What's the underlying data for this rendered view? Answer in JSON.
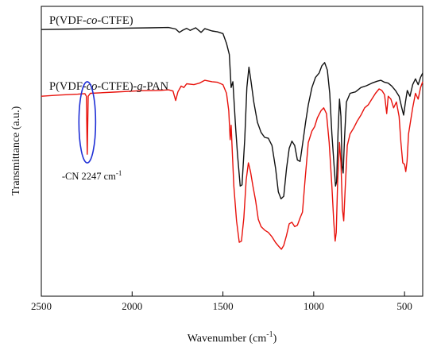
{
  "chart_data": {
    "type": "line",
    "xlabel": "Wavenumber (cm",
    "xlabel_sup": "-1",
    "xlabel_tail": ")",
    "ylabel": "Transmittance (a.u.)",
    "xlim": [
      2500,
      400
    ],
    "x_reversed": true,
    "y_ticks_shown": false,
    "ylim": [
      0,
      100
    ],
    "x_ticks": [
      2500,
      2000,
      1500,
      1000,
      500
    ],
    "x_tick_labels": [
      "2500",
      "2000",
      "1500",
      "1000",
      "500"
    ],
    "series": [
      {
        "name": "P(VDF-co-CTFE)",
        "name_parts": [
          "P(VDF-",
          "co",
          "-CTFE)"
        ],
        "color": "#111111",
        "points": [
          [
            2500,
            92
          ],
          [
            2300,
            92.2
          ],
          [
            2100,
            92.4
          ],
          [
            1900,
            92.6
          ],
          [
            1800,
            92.7
          ],
          [
            1760,
            92.2
          ],
          [
            1740,
            91.0
          ],
          [
            1720,
            91.8
          ],
          [
            1700,
            92.4
          ],
          [
            1680,
            91.7
          ],
          [
            1650,
            92.6
          ],
          [
            1620,
            91.0
          ],
          [
            1600,
            92.3
          ],
          [
            1560,
            91.5
          ],
          [
            1530,
            91.2
          ],
          [
            1500,
            90.6
          ],
          [
            1480,
            87.2
          ],
          [
            1465,
            83.4
          ],
          [
            1455,
            72.0
          ],
          [
            1445,
            74.0
          ],
          [
            1430,
            58.0
          ],
          [
            1420,
            49.0
          ],
          [
            1405,
            38.0
          ],
          [
            1395,
            38.4
          ],
          [
            1380,
            54.0
          ],
          [
            1368,
            72.0
          ],
          [
            1357,
            79.0
          ],
          [
            1345,
            74.0
          ],
          [
            1330,
            67.0
          ],
          [
            1310,
            60.0
          ],
          [
            1290,
            56.5
          ],
          [
            1270,
            54.8
          ],
          [
            1250,
            54.5
          ],
          [
            1230,
            52.0
          ],
          [
            1210,
            44.0
          ],
          [
            1195,
            36.0
          ],
          [
            1180,
            33.6
          ],
          [
            1165,
            34.5
          ],
          [
            1150,
            44.0
          ],
          [
            1135,
            51.0
          ],
          [
            1120,
            53.5
          ],
          [
            1105,
            52.0
          ],
          [
            1090,
            47.0
          ],
          [
            1075,
            46.5
          ],
          [
            1060,
            53.0
          ],
          [
            1045,
            60.0
          ],
          [
            1030,
            66.0
          ],
          [
            1010,
            72.0
          ],
          [
            990,
            75.5
          ],
          [
            970,
            77.0
          ],
          [
            955,
            79.5
          ],
          [
            940,
            80.6
          ],
          [
            925,
            78.0
          ],
          [
            912,
            70.0
          ],
          [
            900,
            56.0
          ],
          [
            888,
            45.0
          ],
          [
            880,
            38.0
          ],
          [
            874,
            39.5
          ],
          [
            866,
            57.0
          ],
          [
            858,
            68.0
          ],
          [
            850,
            62.0
          ],
          [
            844,
            45.0
          ],
          [
            838,
            42.5
          ],
          [
            830,
            55.0
          ],
          [
            820,
            67.0
          ],
          [
            800,
            70.0
          ],
          [
            770,
            70.5
          ],
          [
            740,
            72.0
          ],
          [
            710,
            72.6
          ],
          [
            680,
            73.5
          ],
          [
            650,
            74.2
          ],
          [
            630,
            74.5
          ],
          [
            610,
            73.8
          ],
          [
            590,
            73.5
          ],
          [
            570,
            72.5
          ],
          [
            550,
            71.0
          ],
          [
            530,
            69.0
          ],
          [
            515,
            65.0
          ],
          [
            505,
            62.5
          ],
          [
            495,
            67.0
          ],
          [
            485,
            71.0
          ],
          [
            470,
            69.0
          ],
          [
            455,
            73.0
          ],
          [
            440,
            75.0
          ],
          [
            425,
            73.0
          ],
          [
            412,
            75.5
          ],
          [
            400,
            77.0
          ]
        ]
      },
      {
        "name": "P(VDF-co-CTFE)-g-PAN",
        "name_parts": [
          "P(VDF-",
          "co",
          "-CTFE)-",
          "g",
          "-PAN"
        ],
        "color": "#e8120c",
        "points": [
          [
            2500,
            69.0
          ],
          [
            2400,
            69.4
          ],
          [
            2300,
            69.7
          ],
          [
            2260,
            69.9
          ],
          [
            2252,
            69.0
          ],
          [
            2247,
            49.0
          ],
          [
            2242,
            69.0
          ],
          [
            2230,
            70.0
          ],
          [
            2100,
            70.4
          ],
          [
            1950,
            70.9
          ],
          [
            1850,
            71.0
          ],
          [
            1800,
            71.2
          ],
          [
            1775,
            70.8
          ],
          [
            1760,
            67.5
          ],
          [
            1748,
            70.5
          ],
          [
            1730,
            72.5
          ],
          [
            1715,
            72.0
          ],
          [
            1700,
            73.3
          ],
          [
            1660,
            73.0
          ],
          [
            1630,
            73.5
          ],
          [
            1600,
            74.5
          ],
          [
            1560,
            74.0
          ],
          [
            1530,
            73.8
          ],
          [
            1500,
            73.0
          ],
          [
            1480,
            70.0
          ],
          [
            1468,
            64.0
          ],
          [
            1460,
            54.0
          ],
          [
            1455,
            59.0
          ],
          [
            1448,
            49.0
          ],
          [
            1440,
            38.0
          ],
          [
            1425,
            26.0
          ],
          [
            1410,
            18.6
          ],
          [
            1398,
            19.0
          ],
          [
            1385,
            27.0
          ],
          [
            1372,
            40.0
          ],
          [
            1360,
            46.0
          ],
          [
            1348,
            43.0
          ],
          [
            1335,
            38.0
          ],
          [
            1320,
            33.0
          ],
          [
            1305,
            26.5
          ],
          [
            1290,
            24.0
          ],
          [
            1270,
            22.8
          ],
          [
            1250,
            22.0
          ],
          [
            1230,
            20.5
          ],
          [
            1210,
            18.5
          ],
          [
            1190,
            17.0
          ],
          [
            1178,
            16.2
          ],
          [
            1165,
            17.5
          ],
          [
            1150,
            21.0
          ],
          [
            1135,
            25.0
          ],
          [
            1120,
            25.5
          ],
          [
            1105,
            24.0
          ],
          [
            1090,
            24.5
          ],
          [
            1075,
            27.0
          ],
          [
            1062,
            29.0
          ],
          [
            1048,
            40.0
          ],
          [
            1030,
            53.0
          ],
          [
            1010,
            57.0
          ],
          [
            995,
            58.5
          ],
          [
            980,
            61.5
          ],
          [
            960,
            64.0
          ],
          [
            945,
            65.0
          ],
          [
            930,
            63.0
          ],
          [
            915,
            53.0
          ],
          [
            900,
            38.0
          ],
          [
            890,
            26.0
          ],
          [
            882,
            19.0
          ],
          [
            876,
            22.0
          ],
          [
            868,
            40.0
          ],
          [
            858,
            53.0
          ],
          [
            850,
            46.0
          ],
          [
            842,
            30.0
          ],
          [
            835,
            26.0
          ],
          [
            826,
            38.0
          ],
          [
            815,
            52.0
          ],
          [
            800,
            56.0
          ],
          [
            780,
            58.0
          ],
          [
            760,
            60.5
          ],
          [
            740,
            62.5
          ],
          [
            720,
            65.0
          ],
          [
            700,
            66.0
          ],
          [
            680,
            68.0
          ],
          [
            660,
            70.0
          ],
          [
            640,
            71.5
          ],
          [
            625,
            71.0
          ],
          [
            610,
            69.5
          ],
          [
            598,
            63.0
          ],
          [
            590,
            69.0
          ],
          [
            575,
            68.0
          ],
          [
            560,
            65.0
          ],
          [
            545,
            67.0
          ],
          [
            530,
            62.0
          ],
          [
            520,
            53.0
          ],
          [
            510,
            46.0
          ],
          [
            500,
            45.5
          ],
          [
            493,
            43.0
          ],
          [
            486,
            46.5
          ],
          [
            478,
            56.0
          ],
          [
            468,
            60.0
          ],
          [
            455,
            65.0
          ],
          [
            440,
            70.0
          ],
          [
            425,
            68.0
          ],
          [
            412,
            72.0
          ],
          [
            400,
            74.0
          ]
        ]
      }
    ],
    "annotations": [
      {
        "text": "-CN 2247 cm",
        "sup": "-1",
        "ellipse": {
          "cx": 2247,
          "cy": 60.0,
          "rx_data": 46,
          "ry_data": 14,
          "color": "#1f2fd6"
        }
      }
    ]
  }
}
